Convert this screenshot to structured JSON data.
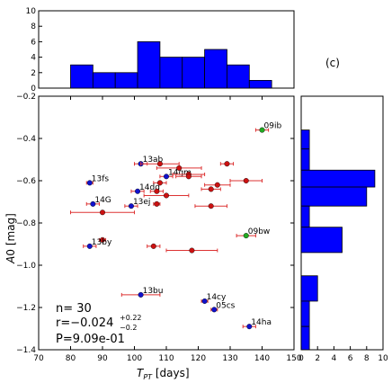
{
  "panel_label": "(c)",
  "stats": {
    "n": "n= 30",
    "r": "r=−0.024",
    "r_sup": "+0.22",
    "r_sub": "−0.2",
    "p": "P=9.09e-01"
  },
  "colors": {
    "red": "#cc1111",
    "blue": "#1111cc",
    "green": "#22aa22",
    "hist": "#0000ff",
    "errbar": "#dd3333"
  },
  "chart_data": [
    {
      "type": "scatter",
      "xlabel": "T_PT [days]",
      "ylabel": "A0 [mag]",
      "xlim": [
        70,
        150
      ],
      "ylim": [
        -1.4,
        -0.2
      ],
      "y_inverted": false,
      "xticks": [
        "70",
        "80",
        "90",
        "100",
        "110",
        "120",
        "130",
        "140",
        "150"
      ],
      "yticks": [
        "−0.2",
        "−0.4",
        "−0.6",
        "−0.8",
        "−1.0",
        "−1.2",
        "−1.4"
      ],
      "ytick_values": [
        -0.2,
        -0.4,
        -0.6,
        -0.8,
        -1.0,
        -1.2,
        -1.4
      ],
      "xtick_values": [
        70,
        80,
        90,
        100,
        110,
        120,
        130,
        140,
        150
      ],
      "points": [
        {
          "x": 140,
          "y": -0.36,
          "xerr": 2,
          "color": "green",
          "label": "09ib"
        },
        {
          "x": 102,
          "y": -0.52,
          "xerr": 2,
          "color": "blue",
          "label": "13ab"
        },
        {
          "x": 108,
          "y": -0.52,
          "xerr": 6,
          "color": "red"
        },
        {
          "x": 114,
          "y": -0.54,
          "xerr": 7,
          "color": "red"
        },
        {
          "x": 129,
          "y": -0.52,
          "xerr": 2,
          "color": "red"
        },
        {
          "x": 110,
          "y": -0.58,
          "xerr": 2,
          "color": "blue",
          "label": "14gm"
        },
        {
          "x": 117,
          "y": -0.57,
          "xerr": 5,
          "color": "red"
        },
        {
          "x": 117,
          "y": -0.58,
          "xerr": 4,
          "color": "red"
        },
        {
          "x": 135,
          "y": -0.6,
          "xerr": 5,
          "color": "red"
        },
        {
          "x": 86,
          "y": -0.61,
          "xerr": 1,
          "color": "blue",
          "label": "13fs"
        },
        {
          "x": 108,
          "y": -0.61,
          "xerr": 2,
          "color": "red"
        },
        {
          "x": 126,
          "y": -0.62,
          "xerr": 4,
          "color": "red"
        },
        {
          "x": 101,
          "y": -0.65,
          "xerr": 2,
          "color": "blue",
          "label": "14dg"
        },
        {
          "x": 107,
          "y": -0.65,
          "xerr": 2,
          "color": "red"
        },
        {
          "x": 124,
          "y": -0.64,
          "xerr": 3,
          "color": "red"
        },
        {
          "x": 110,
          "y": -0.67,
          "xerr": 7,
          "color": "red"
        },
        {
          "x": 87,
          "y": -0.71,
          "xerr": 2,
          "color": "blue",
          "label": "14G"
        },
        {
          "x": 99,
          "y": -0.72,
          "xerr": 2,
          "color": "blue",
          "label": "13ej"
        },
        {
          "x": 107,
          "y": -0.71,
          "xerr": 1,
          "color": "red"
        },
        {
          "x": 124,
          "y": -0.72,
          "xerr": 5,
          "color": "red"
        },
        {
          "x": 90,
          "y": -0.75,
          "xerr": 10,
          "color": "red"
        },
        {
          "x": 135,
          "y": -0.86,
          "xerr": 3,
          "color": "green",
          "label": "09bw"
        },
        {
          "x": 90,
          "y": -0.88,
          "xerr": 1,
          "color": "red"
        },
        {
          "x": 106,
          "y": -0.91,
          "xerr": 2,
          "color": "red"
        },
        {
          "x": 86,
          "y": -0.91,
          "xerr": 2,
          "color": "blue",
          "label": "13by"
        },
        {
          "x": 118,
          "y": -0.93,
          "xerr": 8,
          "color": "red"
        },
        {
          "x": 102,
          "y": -1.14,
          "xerr": 6,
          "color": "blue",
          "label": "13bu"
        },
        {
          "x": 122,
          "y": -1.17,
          "xerr": 1,
          "color": "blue",
          "label": "14cy"
        },
        {
          "x": 125,
          "y": -1.21,
          "xerr": 1,
          "color": "blue",
          "label": "05cs"
        },
        {
          "x": 136,
          "y": -1.29,
          "xerr": 2,
          "color": "blue",
          "label": "14ha"
        }
      ]
    },
    {
      "type": "bar",
      "orientation": "vertical",
      "xlim": [
        70,
        150
      ],
      "ylim": [
        0,
        10
      ],
      "yticks": [
        "0",
        "2",
        "4",
        "6",
        "8",
        "10"
      ],
      "ytick_values": [
        0,
        2,
        4,
        6,
        8,
        10
      ],
      "bins": [
        [
          80,
          87,
          3
        ],
        [
          87,
          94,
          2
        ],
        [
          94,
          101,
          2
        ],
        [
          101,
          108,
          6
        ],
        [
          108,
          115,
          4
        ],
        [
          115,
          122,
          4
        ],
        [
          122,
          129,
          5
        ],
        [
          129,
          136,
          3
        ],
        [
          136,
          143,
          1
        ]
      ]
    },
    {
      "type": "bar",
      "orientation": "horizontal",
      "xlim": [
        0,
        10
      ],
      "ylim": [
        -1.4,
        -0.2
      ],
      "xticks": [
        "0",
        "2",
        "4",
        "6",
        "8",
        "10"
      ],
      "xtick_values": [
        0,
        2,
        4,
        6,
        8,
        10
      ],
      "bins": [
        [
          -0.36,
          -0.45,
          1
        ],
        [
          -0.45,
          -0.55,
          1
        ],
        [
          -0.55,
          -0.63,
          9
        ],
        [
          -0.63,
          -0.72,
          8
        ],
        [
          -0.72,
          -0.82,
          1
        ],
        [
          -0.82,
          -0.94,
          5
        ],
        [
          -0.94,
          -1.05,
          0
        ],
        [
          -1.05,
          -1.17,
          2
        ],
        [
          -1.17,
          -1.29,
          1
        ],
        [
          -1.29,
          -1.4,
          1
        ]
      ]
    }
  ]
}
